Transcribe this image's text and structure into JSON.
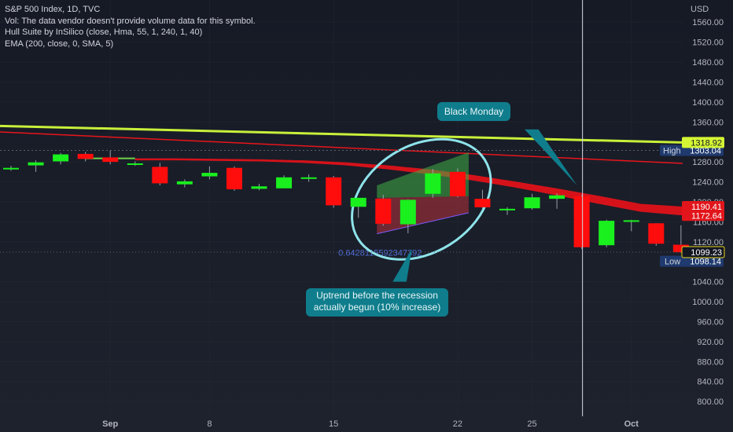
{
  "legend": {
    "symbol": "S&P 500 Index, 1D, TVC",
    "vol": "Vol: The data vendor doesn't provide volume data for this symbol.",
    "hull": "Hull Suite by InSilico (close, Hma, 55, 1, 240, 1, 40)",
    "ema": "EMA (200, close, 0, SMA, 5)"
  },
  "price_axis": {
    "currency": "USD",
    "tick_labels": [
      "1560.00",
      "1520.00",
      "1480.00",
      "1440.00",
      "1400.00",
      "1360.00",
      "1280.00",
      "1240.00",
      "1200.00",
      "1160.00",
      "1120.00",
      "1040.00",
      "1000.00",
      "960.00",
      "920.00",
      "880.00",
      "840.00",
      "800.00"
    ],
    "high_label": "High",
    "high_value": "1303.04",
    "low_label": "Low",
    "low_value": "1098.14",
    "tags": [
      {
        "value": "1318.92",
        "text": "1318.92",
        "bg": "#d4f535",
        "fg": "#131722"
      },
      {
        "value": "1190.41",
        "text": "1190.41",
        "bg": "#e1151b",
        "fg": "#ffffff"
      },
      {
        "value": "1172.64",
        "text": "1172.64",
        "bg": "#e1151b",
        "fg": "#ffffff"
      },
      {
        "value": "1099.23",
        "text": "1099.23",
        "bg": "#131722",
        "fg": "#ffffff",
        "border": "#e8d41f"
      }
    ]
  },
  "time_axis": {
    "labels": [
      {
        "text": "Sep",
        "bold": true
      },
      {
        "text": "8",
        "bold": false
      },
      {
        "text": "15",
        "bold": false
      },
      {
        "text": "22",
        "bold": false
      },
      {
        "text": "25",
        "bold": false
      },
      {
        "text": "Oct",
        "bold": true
      }
    ]
  },
  "annotations": {
    "black_monday": "Black Monday",
    "uptrend_line1": "Uptrend before the recession",
    "uptrend_line2": "actually begun (10% increase)",
    "fib_ratio": "0.6428115592347392"
  },
  "colors": {
    "background": "#131722",
    "bull": "#19f01e",
    "bear": "#ff0c0c",
    "hull_band": "#d5121a",
    "ema_line": "#c8f03a",
    "ema2_line": "#e8151b",
    "ellipse": "#8ee3ea",
    "callout": "#0f7d8c"
  },
  "chart_data": {
    "type": "candlestick",
    "title": "S&P 500 Index, 1D, TVC",
    "currency": "USD",
    "ylim": [
      786,
      1576
    ],
    "candles": [
      {
        "o": 1265,
        "h": 1272,
        "l": 1262,
        "c": 1268
      },
      {
        "o": 1273,
        "h": 1283,
        "l": 1260,
        "c": 1279
      },
      {
        "o": 1281,
        "h": 1298,
        "l": 1275,
        "c": 1295
      },
      {
        "o": 1296,
        "h": 1300,
        "l": 1281,
        "c": 1286
      },
      {
        "o": 1289,
        "h": 1303,
        "l": 1275,
        "c": 1280
      },
      {
        "o": 1277,
        "h": 1281,
        "l": 1272,
        "c": 1277
      },
      {
        "o": 1270,
        "h": 1278,
        "l": 1233,
        "c": 1237
      },
      {
        "o": 1235,
        "h": 1245,
        "l": 1229,
        "c": 1241
      },
      {
        "o": 1251,
        "h": 1271,
        "l": 1245,
        "c": 1258
      },
      {
        "o": 1268,
        "h": 1271,
        "l": 1222,
        "c": 1225
      },
      {
        "o": 1226,
        "h": 1236,
        "l": 1223,
        "c": 1231
      },
      {
        "o": 1227,
        "h": 1253,
        "l": 1227,
        "c": 1249
      },
      {
        "o": 1246,
        "h": 1255,
        "l": 1240,
        "c": 1249
      },
      {
        "o": 1249,
        "h": 1252,
        "l": 1188,
        "c": 1193
      },
      {
        "o": 1190,
        "h": 1208,
        "l": 1168,
        "c": 1208
      },
      {
        "o": 1206,
        "h": 1214,
        "l": 1152,
        "c": 1156
      },
      {
        "o": 1155,
        "h": 1205,
        "l": 1137,
        "c": 1204
      },
      {
        "o": 1216,
        "h": 1266,
        "l": 1208,
        "c": 1257
      },
      {
        "o": 1260,
        "h": 1267,
        "l": 1209,
        "c": 1211
      },
      {
        "o": 1206,
        "h": 1224,
        "l": 1186,
        "c": 1189
      },
      {
        "o": 1184,
        "h": 1189,
        "l": 1174,
        "c": 1186
      },
      {
        "o": 1187,
        "h": 1216,
        "l": 1184,
        "c": 1209
      },
      {
        "o": 1206,
        "h": 1217,
        "l": 1186,
        "c": 1213
      },
      {
        "o": 1211,
        "h": 1213,
        "l": 1106,
        "c": 1109
      },
      {
        "o": 1113,
        "h": 1164,
        "l": 1109,
        "c": 1162
      },
      {
        "o": 1161,
        "h": 1164,
        "l": 1141,
        "c": 1163
      },
      {
        "o": 1157,
        "h": 1157,
        "l": 1112,
        "c": 1116
      },
      {
        "o": 1114,
        "h": 1153,
        "l": 1098,
        "c": 1099
      }
    ],
    "ema_200": {
      "name": "EMA (200, close, 0, SMA, 5)",
      "start": 1352,
      "end": 1318.92
    },
    "ema_red": {
      "start": 1340,
      "end": 1277
    },
    "hull_band_upper": [
      1287,
      1287,
      1286,
      1285,
      1283,
      1279,
      1273,
      1265,
      1254,
      1241,
      1227,
      1212,
      1196,
      1190.41
    ],
    "hull_band_lower": [
      1283,
      1283,
      1282,
      1281,
      1278,
      1273,
      1265,
      1255,
      1243,
      1229,
      1213,
      1196,
      1180,
      1172.64
    ],
    "high": 1303.04,
    "low": 1098.14,
    "last_close": 1099.23,
    "event_marker_candle": 23,
    "events": [
      "Black Monday"
    ]
  }
}
